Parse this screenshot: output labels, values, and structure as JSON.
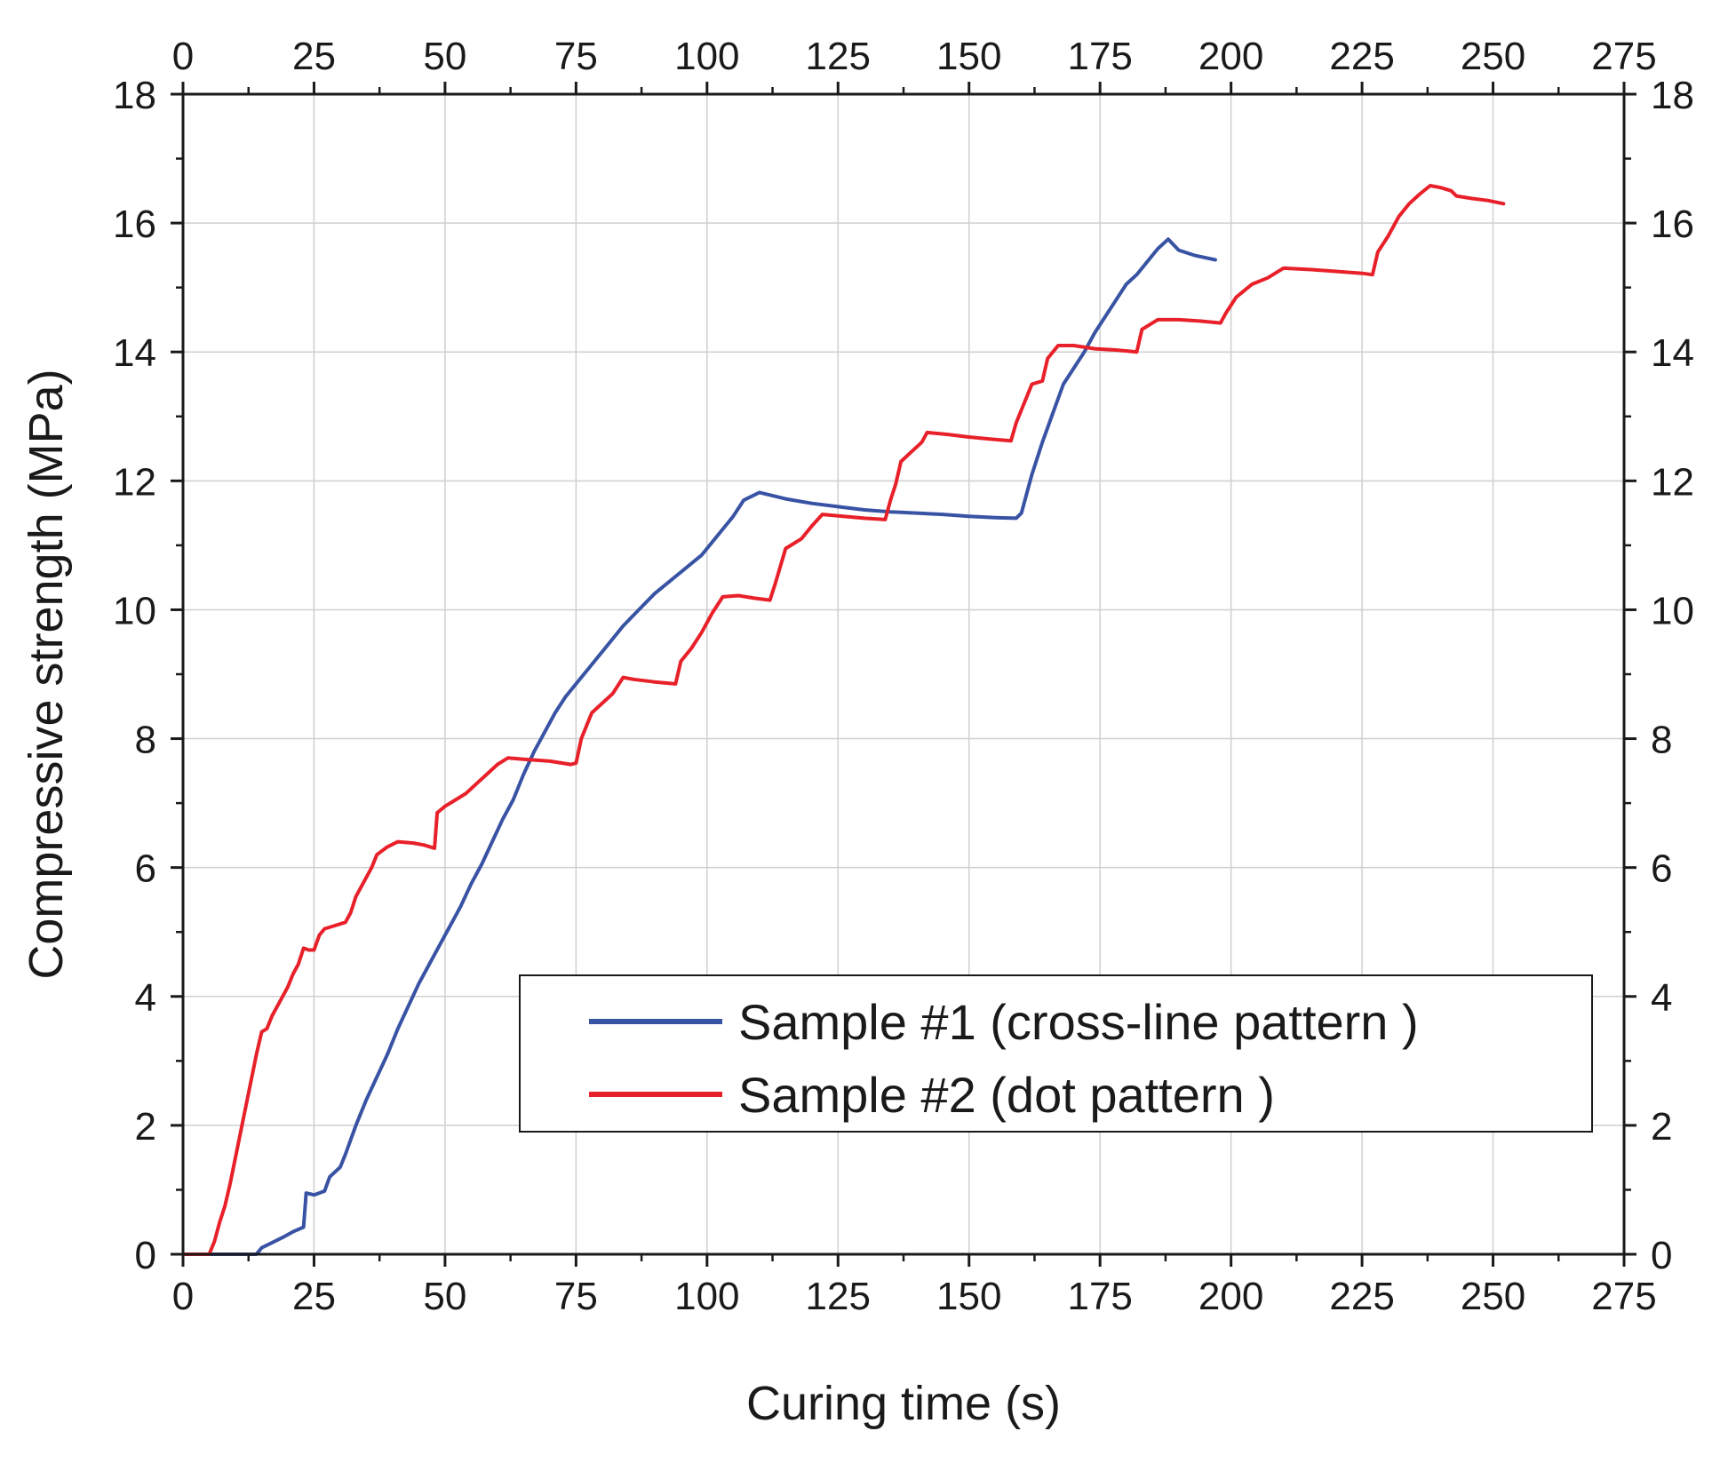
{
  "chart_data": {
    "type": "line",
    "title": "",
    "xlabel": "Curing time (s)",
    "ylabel": "Compressive strength (MPa)",
    "xlim": [
      0,
      275
    ],
    "ylim": [
      0,
      18
    ],
    "x_ticks": [
      0,
      25,
      50,
      75,
      100,
      125,
      150,
      175,
      200,
      225,
      250,
      275
    ],
    "x_tick_labels": [
      "0",
      "25",
      "50",
      "75",
      "100",
      "125",
      "150",
      "175",
      "200",
      "225",
      "250",
      "275"
    ],
    "y_ticks": [
      0,
      2,
      4,
      6,
      8,
      10,
      12,
      14,
      16,
      18
    ],
    "y_tick_labels": [
      "0",
      "2",
      "4",
      "6",
      "8",
      "10",
      "12",
      "14",
      "16",
      "18"
    ],
    "grid": true,
    "mirror_axes": true,
    "legend_position": "lower-right",
    "series": [
      {
        "name": "Sample #1 (cross-line pattern )",
        "color": "#3953a4",
        "points": [
          [
            0,
            0
          ],
          [
            14,
            0
          ],
          [
            15,
            0.1
          ],
          [
            17,
            0.18
          ],
          [
            19,
            0.26
          ],
          [
            21,
            0.35
          ],
          [
            23,
            0.42
          ],
          [
            23.5,
            0.95
          ],
          [
            25,
            0.92
          ],
          [
            27,
            0.98
          ],
          [
            28,
            1.2
          ],
          [
            30,
            1.35
          ],
          [
            31,
            1.55
          ],
          [
            33,
            2.0
          ],
          [
            35,
            2.4
          ],
          [
            37,
            2.75
          ],
          [
            39,
            3.1
          ],
          [
            41,
            3.5
          ],
          [
            43,
            3.85
          ],
          [
            45,
            4.2
          ],
          [
            47,
            4.5
          ],
          [
            49,
            4.8
          ],
          [
            51,
            5.1
          ],
          [
            53,
            5.4
          ],
          [
            55,
            5.75
          ],
          [
            57,
            6.05
          ],
          [
            59,
            6.4
          ],
          [
            61,
            6.75
          ],
          [
            63,
            7.05
          ],
          [
            65,
            7.45
          ],
          [
            67,
            7.8
          ],
          [
            69,
            8.1
          ],
          [
            71,
            8.4
          ],
          [
            73,
            8.65
          ],
          [
            75,
            8.85
          ],
          [
            78,
            9.15
          ],
          [
            81,
            9.45
          ],
          [
            84,
            9.75
          ],
          [
            87,
            10.0
          ],
          [
            90,
            10.25
          ],
          [
            93,
            10.45
          ],
          [
            96,
            10.65
          ],
          [
            99,
            10.85
          ],
          [
            102,
            11.15
          ],
          [
            105,
            11.45
          ],
          [
            107,
            11.7
          ],
          [
            110,
            11.82
          ],
          [
            115,
            11.72
          ],
          [
            120,
            11.65
          ],
          [
            125,
            11.6
          ],
          [
            130,
            11.55
          ],
          [
            135,
            11.52
          ],
          [
            140,
            11.5
          ],
          [
            145,
            11.48
          ],
          [
            150,
            11.45
          ],
          [
            155,
            11.43
          ],
          [
            159,
            11.42
          ],
          [
            160,
            11.5
          ],
          [
            161,
            11.8
          ],
          [
            162,
            12.1
          ],
          [
            164,
            12.6
          ],
          [
            166,
            13.05
          ],
          [
            168,
            13.5
          ],
          [
            170,
            13.75
          ],
          [
            172,
            14.0
          ],
          [
            174,
            14.3
          ],
          [
            176,
            14.55
          ],
          [
            178,
            14.8
          ],
          [
            180,
            15.05
          ],
          [
            182,
            15.2
          ],
          [
            184,
            15.4
          ],
          [
            186,
            15.6
          ],
          [
            188,
            15.75
          ],
          [
            190,
            15.58
          ],
          [
            193,
            15.5
          ],
          [
            197,
            15.43
          ]
        ]
      },
      {
        "name": "Sample #2 (dot pattern )",
        "color": "#e8202a",
        "points": [
          [
            0,
            0
          ],
          [
            5,
            0
          ],
          [
            6,
            0.2
          ],
          [
            7,
            0.5
          ],
          [
            8,
            0.75
          ],
          [
            9,
            1.1
          ],
          [
            10,
            1.5
          ],
          [
            11,
            1.9
          ],
          [
            12,
            2.3
          ],
          [
            13,
            2.7
          ],
          [
            14,
            3.1
          ],
          [
            15,
            3.45
          ],
          [
            16,
            3.5
          ],
          [
            17,
            3.7
          ],
          [
            18,
            3.85
          ],
          [
            19,
            4.0
          ],
          [
            20,
            4.15
          ],
          [
            21,
            4.35
          ],
          [
            22,
            4.5
          ],
          [
            23,
            4.75
          ],
          [
            24,
            4.72
          ],
          [
            25,
            4.72
          ],
          [
            26,
            4.95
          ],
          [
            27,
            5.05
          ],
          [
            29,
            5.1
          ],
          [
            31,
            5.15
          ],
          [
            32,
            5.3
          ],
          [
            33,
            5.55
          ],
          [
            35,
            5.85
          ],
          [
            36,
            6.0
          ],
          [
            37,
            6.2
          ],
          [
            39,
            6.32
          ],
          [
            41,
            6.4
          ],
          [
            44,
            6.38
          ],
          [
            46,
            6.35
          ],
          [
            48,
            6.3
          ],
          [
            48.5,
            6.85
          ],
          [
            50,
            6.95
          ],
          [
            52,
            7.05
          ],
          [
            54,
            7.15
          ],
          [
            56,
            7.3
          ],
          [
            58,
            7.45
          ],
          [
            60,
            7.6
          ],
          [
            62,
            7.7
          ],
          [
            65,
            7.68
          ],
          [
            70,
            7.65
          ],
          [
            74,
            7.6
          ],
          [
            75,
            7.62
          ],
          [
            76,
            8.0
          ],
          [
            77,
            8.2
          ],
          [
            78,
            8.4
          ],
          [
            80,
            8.55
          ],
          [
            82,
            8.7
          ],
          [
            84,
            8.95
          ],
          [
            86,
            8.92
          ],
          [
            90,
            8.88
          ],
          [
            94,
            8.85
          ],
          [
            95,
            9.2
          ],
          [
            97,
            9.4
          ],
          [
            99,
            9.65
          ],
          [
            101,
            9.95
          ],
          [
            103,
            10.2
          ],
          [
            106,
            10.22
          ],
          [
            109,
            10.18
          ],
          [
            112,
            10.15
          ],
          [
            113,
            10.4
          ],
          [
            115,
            10.95
          ],
          [
            118,
            11.1
          ],
          [
            120,
            11.3
          ],
          [
            122,
            11.48
          ],
          [
            126,
            11.45
          ],
          [
            130,
            11.42
          ],
          [
            134,
            11.4
          ],
          [
            135,
            11.7
          ],
          [
            136,
            11.95
          ],
          [
            137,
            12.3
          ],
          [
            139,
            12.45
          ],
          [
            141,
            12.6
          ],
          [
            142,
            12.75
          ],
          [
            146,
            12.72
          ],
          [
            150,
            12.68
          ],
          [
            154,
            12.65
          ],
          [
            158,
            12.62
          ],
          [
            159,
            12.9
          ],
          [
            161,
            13.3
          ],
          [
            162,
            13.5
          ],
          [
            164,
            13.55
          ],
          [
            165,
            13.9
          ],
          [
            167,
            14.1
          ],
          [
            170,
            14.1
          ],
          [
            174,
            14.05
          ],
          [
            178,
            14.03
          ],
          [
            182,
            14.0
          ],
          [
            183,
            14.35
          ],
          [
            185,
            14.45
          ],
          [
            186,
            14.5
          ],
          [
            190,
            14.5
          ],
          [
            194,
            14.48
          ],
          [
            198,
            14.45
          ],
          [
            199,
            14.6
          ],
          [
            201,
            14.85
          ],
          [
            204,
            15.05
          ],
          [
            207,
            15.15
          ],
          [
            210,
            15.3
          ],
          [
            215,
            15.28
          ],
          [
            220,
            15.25
          ],
          [
            225,
            15.22
          ],
          [
            227,
            15.2
          ],
          [
            228,
            15.55
          ],
          [
            230,
            15.8
          ],
          [
            232,
            16.1
          ],
          [
            234,
            16.3
          ],
          [
            236,
            16.45
          ],
          [
            238,
            16.58
          ],
          [
            240,
            16.55
          ],
          [
            242,
            16.5
          ],
          [
            243,
            16.42
          ],
          [
            246,
            16.38
          ],
          [
            249,
            16.35
          ],
          [
            252,
            16.3
          ]
        ]
      }
    ]
  }
}
